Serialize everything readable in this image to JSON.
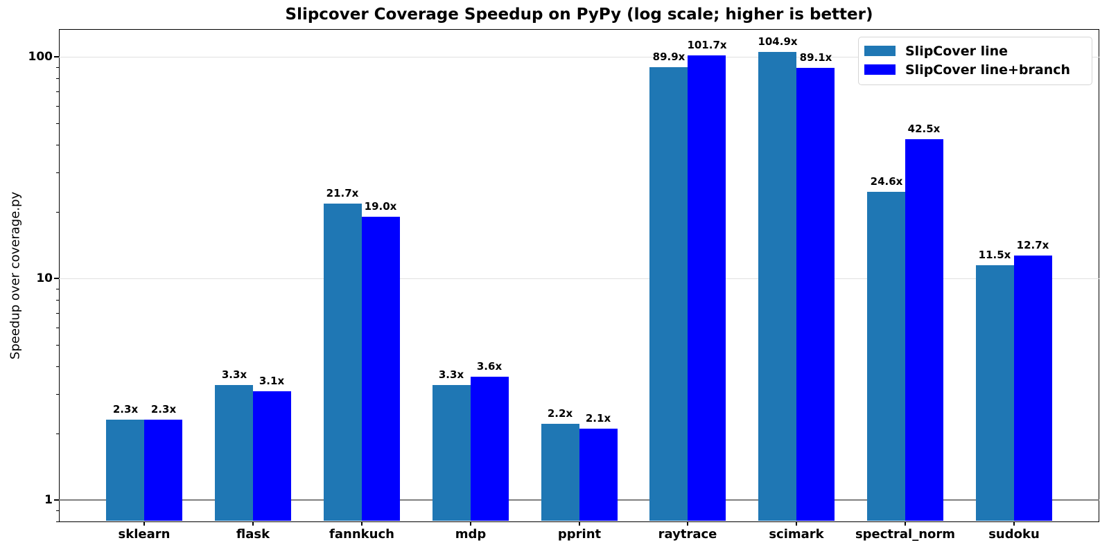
{
  "chart_data": {
    "type": "bar",
    "title": "Slipcover Coverage Speedup on PyPy (log scale; higher is better)",
    "xlabel": "",
    "ylabel": "Speedup over coverage.py",
    "yscale": "log",
    "grid": "horizontal-major",
    "legend_position": "upper right",
    "categories": [
      "sklearn",
      "flask",
      "fannkuch",
      "mdp",
      "pprint",
      "raytrace",
      "scimark",
      "spectral_norm",
      "sudoku"
    ],
    "series": [
      {
        "name": "SlipCover line",
        "color": "#1f77b4",
        "values": [
          2.3,
          3.3,
          21.7,
          3.3,
          2.2,
          89.9,
          104.9,
          24.6,
          11.5
        ],
        "labels": [
          "2.3x",
          "3.3x",
          "21.7x",
          "3.3x",
          "2.2x",
          "89.9x",
          "104.9x",
          "24.6x",
          "11.5x"
        ]
      },
      {
        "name": "SlipCover line+branch",
        "color": "#0000ff",
        "values": [
          2.3,
          3.1,
          19.0,
          3.6,
          2.1,
          101.7,
          89.1,
          42.5,
          12.7
        ],
        "labels": [
          "2.3x",
          "3.1x",
          "19.0x",
          "3.6x",
          "2.1x",
          "101.7x",
          "89.1x",
          "42.5x",
          "12.7x"
        ]
      }
    ],
    "yticks": {
      "values": [
        1,
        10,
        100
      ],
      "labels": [
        "1",
        "10",
        "100"
      ]
    },
    "ylim": [
      0.794,
      133.4
    ],
    "xlim": [
      -0.785,
      8.785
    ],
    "bar_width": 0.35,
    "baseline_value": 1,
    "colors": {
      "grid": "#e0e0e0",
      "baseline": "#7f7f7f",
      "axis": "#000000",
      "text": "#000000",
      "background": "#ffffff"
    }
  }
}
